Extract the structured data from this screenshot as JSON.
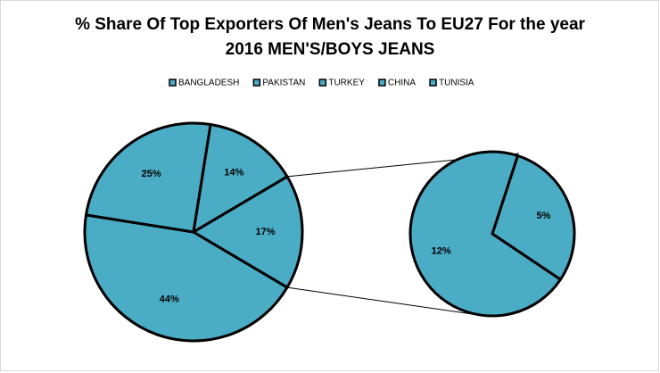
{
  "chart_data": {
    "type": "pie",
    "title": "% Share Of Top Exporters Of Men's Jeans To EU27 For the year",
    "subtitle": "2016 MEN'S/BOYS JEANS",
    "categories": [
      "BANGLADESH",
      "PAKISTAN",
      "TURKEY",
      "CHINA",
      "TUNISIA"
    ],
    "values": [
      44,
      25,
      14,
      12,
      5
    ],
    "value_labels": [
      "44%",
      "25%",
      "14%",
      "12%",
      "5%"
    ],
    "secondary_count": 2,
    "other": {
      "value": 17,
      "label": "17%"
    },
    "color": "#4bacc6"
  }
}
